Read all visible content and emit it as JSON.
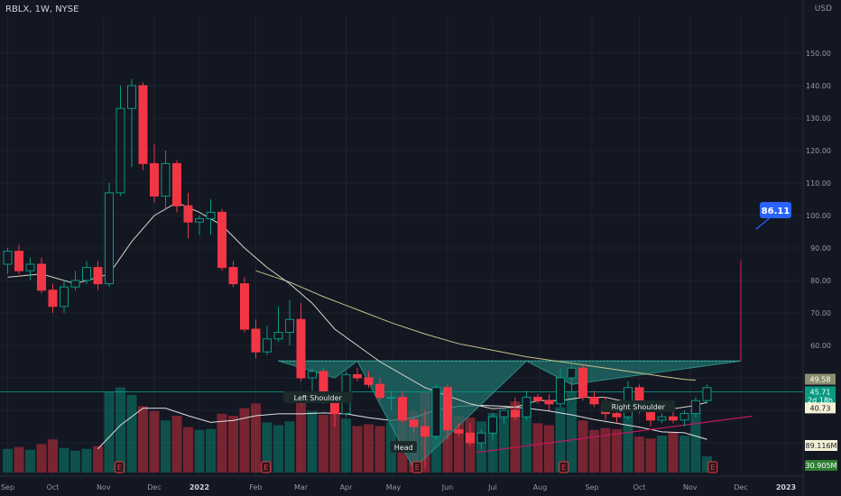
{
  "header": {
    "symbol": "RBLX",
    "interval": "1W",
    "exchange": "NYSE",
    "title": "RBLX, 1W, NYSE"
  },
  "currency": "USD",
  "chart_data": {
    "type": "candlestick",
    "y_ticks": [
      30,
      40,
      50,
      60,
      70,
      80,
      90,
      100,
      110,
      120,
      130,
      140,
      150
    ],
    "y_tick_labels": [
      "30.00",
      "40.00",
      "50.00",
      "60.00",
      "70.00",
      "80.00",
      "90.00",
      "100.00",
      "110.00",
      "120.00",
      "130.00",
      "140.00",
      "150.00"
    ],
    "ylim": [
      20,
      154
    ],
    "x_ticks": [
      {
        "label": "Sep",
        "week": 0
      },
      {
        "label": "Oct",
        "week": 4
      },
      {
        "label": "Nov",
        "week": 8.5
      },
      {
        "label": "Dec",
        "week": 13
      },
      {
        "label": "2022",
        "week": 17
      },
      {
        "label": "Feb",
        "week": 22
      },
      {
        "label": "Mar",
        "week": 26
      },
      {
        "label": "Apr",
        "week": 30
      },
      {
        "label": "May",
        "week": 34.2
      },
      {
        "label": "Jun",
        "week": 39
      },
      {
        "label": "Jul",
        "week": 43
      },
      {
        "label": "Aug",
        "week": 47.2
      },
      {
        "label": "Sep",
        "week": 51.8
      },
      {
        "label": "Oct",
        "week": 56
      },
      {
        "label": "Nov",
        "week": 60.5
      },
      {
        "label": "Dec",
        "week": 65
      },
      {
        "label": "2023",
        "week": 69
      }
    ],
    "candles": [
      {
        "o": 85,
        "h": 90,
        "l": 82,
        "c": 89
      },
      {
        "o": 89,
        "h": 91,
        "l": 82,
        "c": 83
      },
      {
        "o": 83,
        "h": 87,
        "l": 80,
        "c": 85
      },
      {
        "o": 85,
        "h": 87,
        "l": 76,
        "c": 77
      },
      {
        "o": 77,
        "h": 79,
        "l": 70,
        "c": 72
      },
      {
        "o": 72,
        "h": 80,
        "l": 70,
        "c": 78
      },
      {
        "o": 78,
        "h": 83,
        "l": 77,
        "c": 80
      },
      {
        "o": 80,
        "h": 86,
        "l": 79,
        "c": 84
      },
      {
        "o": 84,
        "h": 86,
        "l": 77,
        "c": 79
      },
      {
        "o": 79,
        "h": 110,
        "l": 78,
        "c": 107
      },
      {
        "o": 107,
        "h": 140,
        "l": 106,
        "c": 133
      },
      {
        "o": 133,
        "h": 142,
        "l": 115,
        "c": 140
      },
      {
        "o": 140,
        "h": 141,
        "l": 114,
        "c": 116
      },
      {
        "o": 116,
        "h": 122,
        "l": 104,
        "c": 106
      },
      {
        "o": 106,
        "h": 120,
        "l": 102,
        "c": 116
      },
      {
        "o": 116,
        "h": 117,
        "l": 101,
        "c": 103
      },
      {
        "o": 103,
        "h": 107,
        "l": 93,
        "c": 98
      },
      {
        "o": 98,
        "h": 100,
        "l": 94,
        "c": 99
      },
      {
        "o": 99,
        "h": 105,
        "l": 94,
        "c": 101
      },
      {
        "o": 101,
        "h": 102,
        "l": 83,
        "c": 84
      },
      {
        "o": 84,
        "h": 86,
        "l": 78,
        "c": 79
      },
      {
        "o": 79,
        "h": 81,
        "l": 64,
        "c": 65
      },
      {
        "o": 65,
        "h": 68,
        "l": 56,
        "c": 58
      },
      {
        "o": 58,
        "h": 66,
        "l": 57,
        "c": 62
      },
      {
        "o": 62,
        "h": 72,
        "l": 61,
        "c": 64
      },
      {
        "o": 64,
        "h": 74,
        "l": 60,
        "c": 68
      },
      {
        "o": 68,
        "h": 73,
        "l": 49,
        "c": 50
      },
      {
        "o": 50,
        "h": 53,
        "l": 46,
        "c": 52
      },
      {
        "o": 52,
        "h": 53,
        "l": 42,
        "c": 43
      },
      {
        "o": 43,
        "h": 45,
        "l": 35,
        "c": 39
      },
      {
        "o": 39,
        "h": 52,
        "l": 38,
        "c": 51
      },
      {
        "o": 51,
        "h": 53,
        "l": 49,
        "c": 50
      },
      {
        "o": 50,
        "h": 52,
        "l": 47,
        "c": 48
      },
      {
        "o": 48,
        "h": 50,
        "l": 43,
        "c": 44
      },
      {
        "o": 44,
        "h": 46,
        "l": 40,
        "c": 44
      },
      {
        "o": 44,
        "h": 46,
        "l": 36,
        "c": 37
      },
      {
        "o": 37,
        "h": 38,
        "l": 33,
        "c": 35
      },
      {
        "o": 35,
        "h": 40,
        "l": 22,
        "c": 32
      },
      {
        "o": 32,
        "h": 48,
        "l": 31,
        "c": 47
      },
      {
        "o": 47,
        "h": 48,
        "l": 31,
        "c": 34
      },
      {
        "o": 34,
        "h": 36,
        "l": 32,
        "c": 33
      },
      {
        "o": 33,
        "h": 36,
        "l": 29,
        "c": 30
      },
      {
        "o": 30,
        "h": 34,
        "l": 28,
        "c": 33
      },
      {
        "o": 33,
        "h": 39,
        "l": 31,
        "c": 38
      },
      {
        "o": 38,
        "h": 41,
        "l": 36,
        "c": 40
      },
      {
        "o": 40,
        "h": 44,
        "l": 37,
        "c": 38
      },
      {
        "o": 38,
        "h": 46,
        "l": 37,
        "c": 44
      },
      {
        "o": 44,
        "h": 45,
        "l": 42,
        "c": 43
      },
      {
        "o": 43,
        "h": 45,
        "l": 40,
        "c": 42
      },
      {
        "o": 42,
        "h": 53,
        "l": 41,
        "c": 50
      },
      {
        "o": 50,
        "h": 55,
        "l": 46,
        "c": 53
      },
      {
        "o": 53,
        "h": 54,
        "l": 43,
        "c": 44
      },
      {
        "o": 44,
        "h": 46,
        "l": 41,
        "c": 42
      },
      {
        "o": 42,
        "h": 44,
        "l": 37,
        "c": 39
      },
      {
        "o": 39,
        "h": 40,
        "l": 36,
        "c": 38
      },
      {
        "o": 38,
        "h": 49,
        "l": 37,
        "c": 47
      },
      {
        "o": 47,
        "h": 48,
        "l": 39,
        "c": 40
      },
      {
        "o": 40,
        "h": 41,
        "l": 35,
        "c": 37
      },
      {
        "o": 37,
        "h": 39,
        "l": 36,
        "c": 38
      },
      {
        "o": 38,
        "h": 41,
        "l": 36,
        "c": 37
      },
      {
        "o": 37,
        "h": 40,
        "l": 35,
        "c": 39
      },
      {
        "o": 39,
        "h": 44,
        "l": 38,
        "c": 43
      },
      {
        "o": 43,
        "h": 48,
        "l": 42,
        "c": 47
      }
    ],
    "volume": [
      2.5,
      2.7,
      2.4,
      3.0,
      3.5,
      2.6,
      2.3,
      2.5,
      2.8,
      8.5,
      9.0,
      8.2,
      7.0,
      6.5,
      5.5,
      6.0,
      4.8,
      4.5,
      4.6,
      6.2,
      6.0,
      6.8,
      7.3,
      5.3,
      5.0,
      5.4,
      7.8,
      6.5,
      6.1,
      6.4,
      5.7,
      4.9,
      5.1,
      4.9,
      5.3,
      5.6,
      6.5,
      8.5,
      9.0,
      8.4,
      6.0,
      5.8,
      5.4,
      6.3,
      6.6,
      7.5,
      6.5,
      5.2,
      5.0,
      6.9,
      8.6,
      5.5,
      4.5,
      4.7,
      4.6,
      5.9,
      3.8,
      3.6,
      3.9,
      4.2,
      3.9,
      6.8,
      1.7
    ],
    "ma_short": [
      [
        0,
        81
      ],
      [
        3,
        82
      ],
      [
        6,
        79
      ],
      [
        9,
        82
      ],
      [
        11,
        92
      ],
      [
        13,
        100
      ],
      [
        15,
        104
      ],
      [
        17,
        101
      ],
      [
        19,
        97
      ],
      [
        21,
        90
      ],
      [
        23,
        84
      ],
      [
        25,
        79
      ],
      [
        27,
        73
      ],
      [
        29,
        65
      ],
      [
        31,
        60
      ],
      [
        33,
        55
      ],
      [
        35,
        51
      ],
      [
        37,
        47
      ],
      [
        39,
        44.5
      ],
      [
        41,
        42
      ],
      [
        43,
        40.5
      ],
      [
        45,
        41
      ],
      [
        47,
        43
      ],
      [
        49,
        43
      ],
      [
        51,
        44
      ],
      [
        53,
        44
      ],
      [
        55,
        42.5
      ],
      [
        57,
        41
      ],
      [
        59,
        40.5
      ],
      [
        61,
        41.5
      ],
      [
        62,
        42.5
      ]
    ],
    "ma_long": [
      [
        22,
        83
      ],
      [
        25,
        79.5
      ],
      [
        28,
        75
      ],
      [
        31,
        71
      ],
      [
        34,
        67
      ],
      [
        37,
        63.5
      ],
      [
        40,
        60.5
      ],
      [
        43,
        58.5
      ],
      [
        46,
        56.5
      ],
      [
        49,
        55
      ],
      [
        52,
        53.5
      ],
      [
        55,
        52
      ],
      [
        58,
        50.5
      ],
      [
        60,
        49.5
      ],
      [
        61,
        49.3
      ]
    ],
    "volume_ma": [
      [
        8,
        2.5
      ],
      [
        10,
        5
      ],
      [
        12,
        6.8
      ],
      [
        14,
        6.8
      ],
      [
        16,
        6
      ],
      [
        18,
        5.3
      ],
      [
        20,
        5.5
      ],
      [
        22,
        6
      ],
      [
        24,
        6.2
      ],
      [
        26,
        6.2
      ],
      [
        28,
        6.3
      ],
      [
        30,
        6.2
      ],
      [
        32,
        5.8
      ],
      [
        34,
        5.5
      ],
      [
        36,
        5.8
      ],
      [
        38,
        6.6
      ],
      [
        40,
        7.0
      ],
      [
        42,
        7.1
      ],
      [
        44,
        7.0
      ],
      [
        46,
        6.8
      ],
      [
        48,
        6.5
      ],
      [
        50,
        6.1
      ],
      [
        52,
        5.6
      ],
      [
        54,
        5.2
      ],
      [
        56,
        4.8
      ],
      [
        58,
        4.3
      ],
      [
        60,
        4.2
      ],
      [
        62,
        3.5
      ]
    ],
    "earnings_markers": [
      9.9,
      22.9,
      36.3,
      49.3,
      62.5
    ],
    "pattern": {
      "neckline": 55.2,
      "vertices": [
        [
          24,
          55.2
        ],
        [
          29,
          50
        ],
        [
          31,
          55.2
        ],
        [
          36,
          22
        ],
        [
          46,
          55.2
        ],
        [
          50,
          48
        ],
        [
          65,
          55.2
        ]
      ],
      "labels": [
        "Left Shoulder",
        "Head",
        "Right Shoulder"
      ],
      "target": 86.11,
      "target_label": "86.11",
      "support_line": [
        [
          41.5,
          27
        ],
        [
          66,
          38.2
        ]
      ]
    },
    "last_price_line": 45.71,
    "price_labels": [
      {
        "text": "49.58",
        "value": 49.58,
        "color": "#8b8f6e"
      },
      {
        "text": "45.71",
        "value": 45.71,
        "color": "#089981"
      },
      {
        "text": "2d 18h",
        "value": 43.2,
        "color": "#089981"
      },
      {
        "text": "40.73",
        "value": 40.73,
        "color": "#f5f1d6",
        "text_color": "#131722"
      }
    ],
    "volume_labels": [
      {
        "text": "89.116M",
        "color": "#f5f1d6",
        "text_color": "#131722"
      },
      {
        "text": "30.905M",
        "color": "#2e7d32"
      }
    ],
    "colors": {
      "up": "#089981",
      "down": "#f23645",
      "ma_short": "#d9d4c7",
      "ma_long": "#c9c08a",
      "pattern_fill": "#1f6f6a",
      "support": "#c2185b",
      "target_box": "#2962ff"
    }
  }
}
